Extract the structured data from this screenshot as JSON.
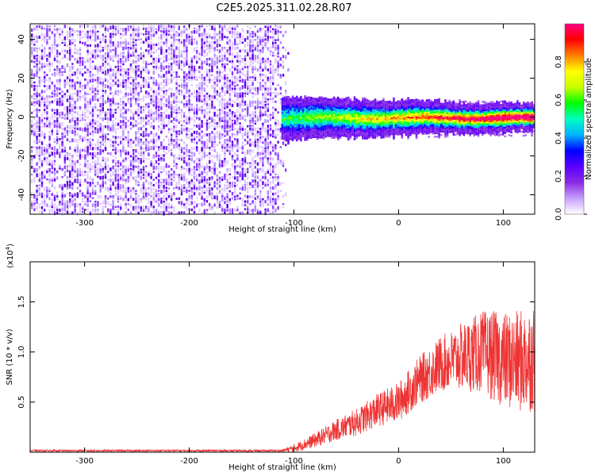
{
  "title": "C2E5.2025.311.02.28.R07",
  "chart_data": [
    {
      "type": "heatmap",
      "xlabel": "Height of straight line (km)",
      "ylabel": "Frequency (Hz)",
      "xlim": [
        -352,
        130
      ],
      "ylim": [
        -50,
        48
      ],
      "xticks": [
        -300,
        -200,
        -100,
        0,
        100
      ],
      "yticks": [
        -40,
        -20,
        0,
        20,
        40
      ],
      "colorbar": {
        "label": "Normalized spectral amplitude",
        "range": [
          0.0,
          1.0
        ],
        "ticks": [
          "0.0",
          "0.2",
          "0.4",
          "0.6",
          "0.8"
        ],
        "colors": [
          "#ffffff",
          "#c8a0ff",
          "#8a2be2",
          "#5a00ff",
          "#0000ff",
          "#00b4ff",
          "#00ffc0",
          "#00ff00",
          "#c8ff00",
          "#ffff00",
          "#ff8000",
          "#ff0000",
          "#ff0080"
        ]
      },
      "regions": [
        {
          "name": "broadband noise",
          "x_range": [
            -352,
            -112
          ],
          "freq_range": [
            -50,
            48
          ],
          "amplitude": 0.15
        },
        {
          "name": "narrow band signal",
          "x_range": [
            -112,
            130
          ],
          "center_hz": 0,
          "halfwidth_hz": 4,
          "peak_amplitude": 0.97
        }
      ]
    },
    {
      "type": "line",
      "xlabel": "Height of straight line (km)",
      "ylabel": "SNR (10 * v/v)",
      "y_multiplier": "(x10",
      "y_multiplier_exp": "4",
      "y_multiplier_close": ")",
      "xlim": [
        -352,
        130
      ],
      "ylim": [
        0,
        1.9
      ],
      "xticks": [
        -300,
        -200,
        -100,
        0,
        100
      ],
      "yticks": [
        "0.5",
        "1.0",
        "1.5"
      ],
      "color": "#ee3333",
      "trend": {
        "x": [
          -352,
          -112,
          -100,
          -80,
          -60,
          -40,
          -20,
          0,
          20,
          40,
          60,
          80,
          100,
          115,
          130
        ],
        "y": [
          0.015,
          0.015,
          0.04,
          0.12,
          0.22,
          0.3,
          0.42,
          0.5,
          0.72,
          0.88,
          0.95,
          1.0,
          0.92,
          0.9,
          0.95
        ]
      },
      "noise_amplitude": {
        "x": [
          -352,
          -112,
          -100,
          -50,
          0,
          50,
          90,
          130
        ],
        "y": [
          0.01,
          0.01,
          0.04,
          0.12,
          0.2,
          0.3,
          0.45,
          0.55
        ]
      }
    }
  ]
}
